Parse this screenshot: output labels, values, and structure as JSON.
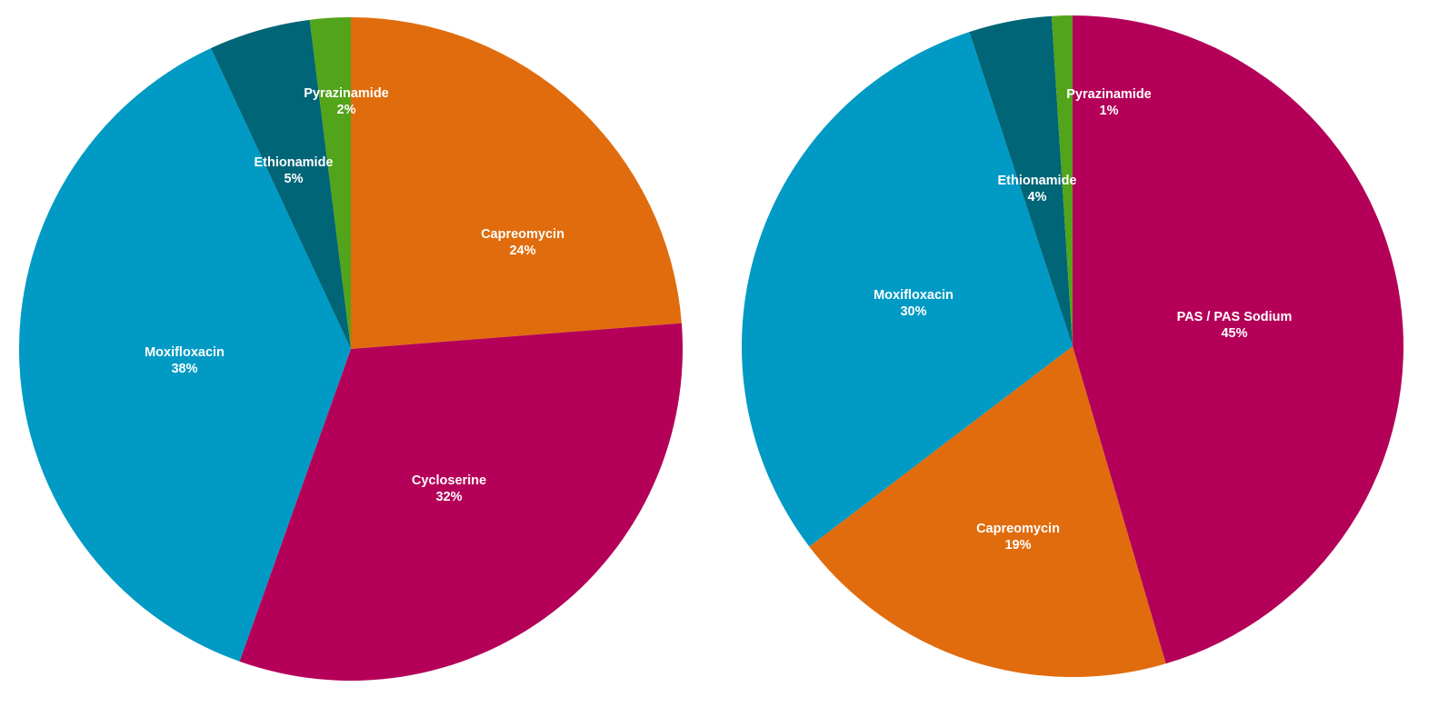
{
  "chart_data": [
    {
      "type": "pie",
      "slices": [
        {
          "label": "Capreomycin",
          "percent_label": "24%",
          "value": 24,
          "color": "#E06C0D"
        },
        {
          "label": "Cycloserine",
          "percent_label": "32%",
          "value": 32,
          "color": "#B40058"
        },
        {
          "label": "Moxifloxacin",
          "percent_label": "38%",
          "value": 38,
          "color": "#009AC4"
        },
        {
          "label": "Ethionamide",
          "percent_label": "5%",
          "value": 5,
          "color": "#006577"
        },
        {
          "label": "Pyrazinamide",
          "percent_label": "2%",
          "value": 2,
          "color": "#52A41A"
        }
      ]
    },
    {
      "type": "pie",
      "slices": [
        {
          "label": "PAS / PAS Sodium",
          "percent_label": "45%",
          "value": 45,
          "color": "#B40058"
        },
        {
          "label": "Capreomycin",
          "percent_label": "19%",
          "value": 19,
          "color": "#E06C0D"
        },
        {
          "label": "Moxifloxacin",
          "percent_label": "30%",
          "value": 30,
          "color": "#009AC4"
        },
        {
          "label": "Ethionamide",
          "percent_label": "4%",
          "value": 4,
          "color": "#006577"
        },
        {
          "label": "Pyrazinamide",
          "percent_label": "1%",
          "value": 1,
          "color": "#52A41A"
        }
      ]
    }
  ]
}
